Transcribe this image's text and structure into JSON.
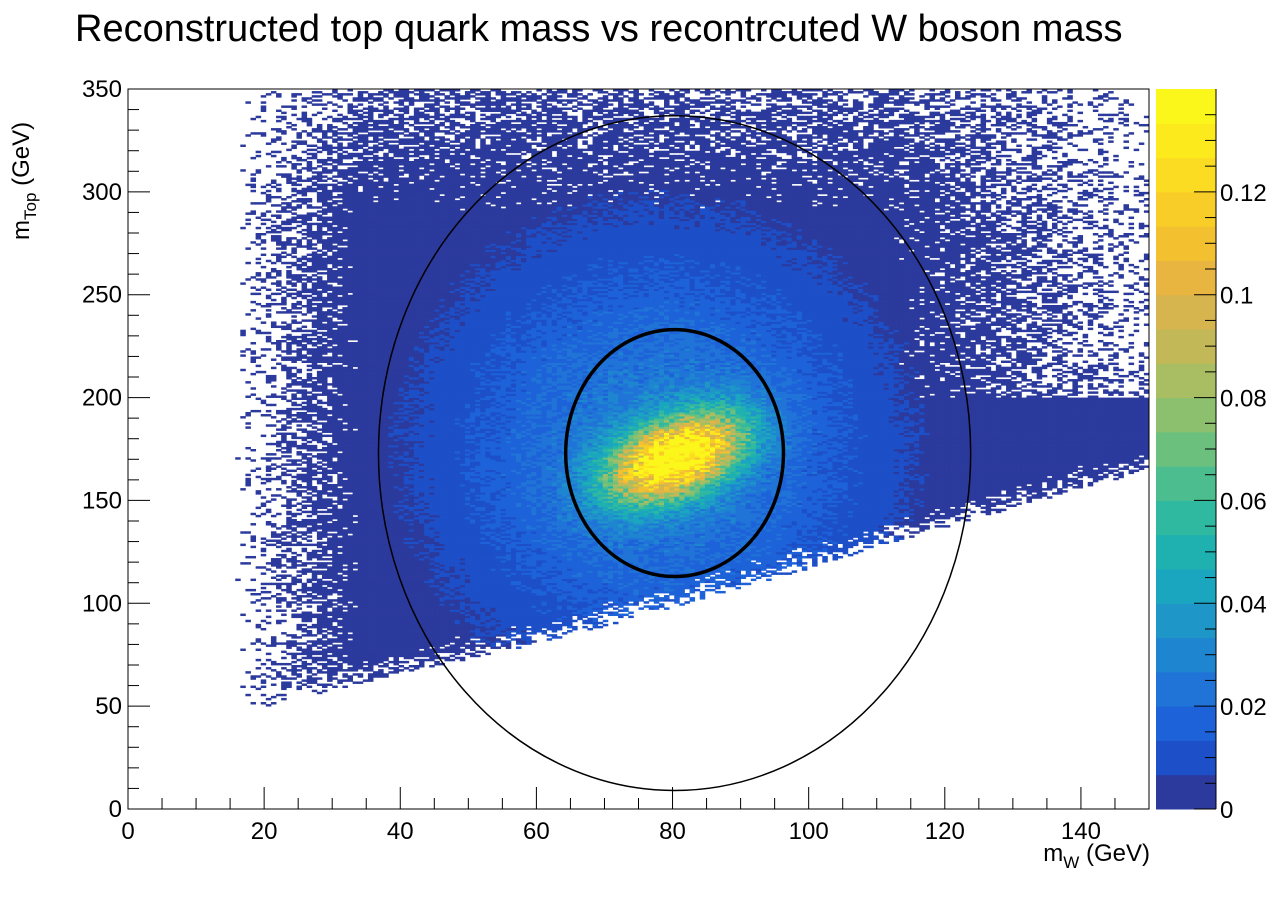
{
  "chart_data": {
    "type": "heatmap",
    "title": "Reconstructed top quark mass vs recontrcuted W boson mass",
    "xlabel": {
      "main": "m",
      "sub": "W",
      "unit": " (GeV)"
    },
    "ylabel": {
      "main": "m",
      "sub": "Top",
      "unit": " (GeV)"
    },
    "xlim": [
      0,
      150
    ],
    "ylim": [
      0,
      350
    ],
    "x_ticks": [
      0,
      20,
      40,
      60,
      80,
      100,
      120,
      140
    ],
    "x_tick_labels": [
      "0",
      "20",
      "40",
      "60",
      "80",
      "100",
      "120",
      "140"
    ],
    "y_ticks": [
      0,
      50,
      100,
      150,
      200,
      250,
      300,
      350
    ],
    "y_tick_labels": [
      "0",
      "50",
      "100",
      "150",
      "200",
      "250",
      "300",
      "350"
    ],
    "colorbar": {
      "range": [
        0,
        0.14
      ],
      "ticks": [
        0,
        0.02,
        0.04,
        0.06,
        0.08,
        0.1,
        0.12
      ],
      "tick_labels": [
        "0",
        "0.02",
        "0.04",
        "0.06",
        "0.08",
        "0.1",
        "0.12"
      ],
      "palette": [
        "#2b3a9c",
        "#1c4fc8",
        "#1d62d8",
        "#2074d8",
        "#1e86d0",
        "#1f96c8",
        "#1ba6c0",
        "#1fb1b0",
        "#2fb9a0",
        "#4cbd8e",
        "#6cc07e",
        "#8cc06e",
        "#a9bd62",
        "#c2b858",
        "#d6b44e",
        "#e8b640",
        "#f3c030",
        "#f8cd27",
        "#fbdc22",
        "#fdea1c",
        "#fcf71a"
      ],
      "levels": 21
    },
    "density": {
      "peak": {
        "mW": 80.5,
        "mTop": 171,
        "value": 0.14
      },
      "sigma_mW": 6.5,
      "sigma_mTop": 14,
      "correlation": 0.45,
      "lower_edge": [
        [
          18,
          48
        ],
        [
          40,
          66
        ],
        [
          60,
          80
        ],
        [
          80,
          98
        ],
        [
          100,
          117
        ],
        [
          120,
          137
        ],
        [
          150,
          165
        ]
      ]
    },
    "ellipses": [
      {
        "name": "outer",
        "center": [
          80.3,
          173
        ],
        "radius_mW": 43.5,
        "radius_mTop": 164,
        "stroke": "#000000"
      },
      {
        "name": "inner",
        "center": [
          80.3,
          173
        ],
        "radius_mW": 16,
        "radius_mTop": 60,
        "stroke": "#000000"
      }
    ]
  }
}
